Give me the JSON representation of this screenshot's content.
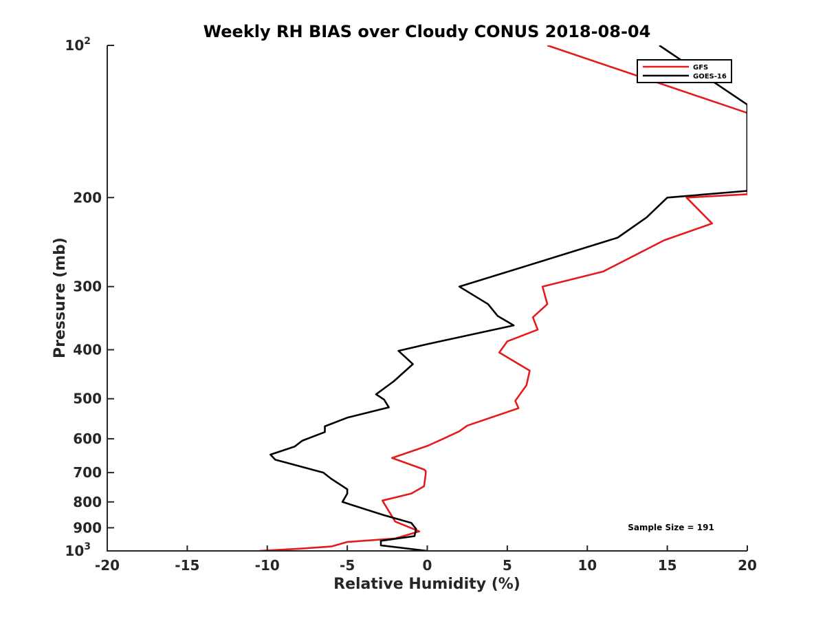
{
  "chart_data": {
    "type": "line",
    "title": "Weekly RH BIAS over Cloudy CONUS 2018-08-04",
    "xlabel": "Relative Humidity (%)",
    "ylabel": "Pressure (mb)",
    "xlim": [
      -20,
      20
    ],
    "ylim": [
      100,
      1000
    ],
    "y_scale": "log",
    "y_reversed": true,
    "grid": false,
    "legend_position": "top-right",
    "x_ticks": [
      "-20",
      "-15",
      "-10",
      "-5",
      "0",
      "5",
      "10",
      "15",
      "20"
    ],
    "y_ticks": [
      {
        "value": 100,
        "base": "10",
        "exp": "2"
      },
      {
        "value": 200,
        "label": "200"
      },
      {
        "value": 300,
        "label": "300"
      },
      {
        "value": 400,
        "label": "400"
      },
      {
        "value": 500,
        "label": "500"
      },
      {
        "value": 600,
        "label": "600"
      },
      {
        "value": 700,
        "label": "700"
      },
      {
        "value": 800,
        "label": "800"
      },
      {
        "value": 900,
        "label": "900"
      },
      {
        "value": 1000,
        "base": "10",
        "exp": "3"
      }
    ],
    "series": [
      {
        "name": "GFS",
        "color": "#e41a1c",
        "points": [
          [
            -10.5,
            1000
          ],
          [
            -8.0,
            990
          ],
          [
            -6.0,
            980
          ],
          [
            -5.0,
            960
          ],
          [
            -2.0,
            945
          ],
          [
            -0.5,
            915
          ],
          [
            -2.0,
            875
          ],
          [
            -2.5,
            825
          ],
          [
            -2.8,
            795
          ],
          [
            -1.0,
            770
          ],
          [
            -0.2,
            745
          ],
          [
            -0.1,
            705
          ],
          [
            -0.1,
            695
          ],
          [
            -0.2,
            690
          ],
          [
            -2.2,
            655
          ],
          [
            0.0,
            620
          ],
          [
            1.0,
            600
          ],
          [
            2.0,
            580
          ],
          [
            2.5,
            565
          ],
          [
            5.7,
            522
          ],
          [
            5.5,
            505
          ],
          [
            6.2,
            470
          ],
          [
            6.4,
            440
          ],
          [
            4.5,
            405
          ],
          [
            5.0,
            385
          ],
          [
            6.9,
            365
          ],
          [
            6.6,
            345
          ],
          [
            7.5,
            325
          ],
          [
            7.2,
            300
          ],
          [
            11.0,
            280
          ],
          [
            14.8,
            243
          ],
          [
            17.8,
            225
          ],
          [
            16.2,
            200
          ],
          [
            20.0,
            197
          ],
          [
            20.0,
            136
          ],
          [
            7.5,
            100
          ]
        ]
      },
      {
        "name": "GOES-16",
        "color": "#000000",
        "points": [
          [
            0.0,
            1000
          ],
          [
            -2.9,
            975
          ],
          [
            -2.9,
            955
          ],
          [
            -0.8,
            935
          ],
          [
            -0.7,
            905
          ],
          [
            -1.0,
            880
          ],
          [
            -2.7,
            850
          ],
          [
            -5.3,
            800
          ],
          [
            -5.0,
            770
          ],
          [
            -5.0,
            755
          ],
          [
            -6.0,
            720
          ],
          [
            -6.5,
            700
          ],
          [
            -9.5,
            660
          ],
          [
            -9.8,
            645
          ],
          [
            -8.3,
            622
          ],
          [
            -7.8,
            605
          ],
          [
            -6.4,
            582
          ],
          [
            -6.4,
            567
          ],
          [
            -5.0,
            545
          ],
          [
            -2.4,
            520
          ],
          [
            -2.7,
            502
          ],
          [
            -3.2,
            490
          ],
          [
            -2.1,
            462
          ],
          [
            -0.9,
            427
          ],
          [
            -1.8,
            402
          ],
          [
            0.0,
            390
          ],
          [
            5.4,
            358
          ],
          [
            4.4,
            343
          ],
          [
            3.8,
            325
          ],
          [
            2.0,
            300
          ],
          [
            5.4,
            278
          ],
          [
            11.9,
            240
          ],
          [
            13.7,
            219
          ],
          [
            15.0,
            200
          ],
          [
            20.0,
            194
          ],
          [
            20.0,
            131
          ],
          [
            14.5,
            100
          ]
        ]
      }
    ],
    "annotation": "Sample Size = 191"
  }
}
